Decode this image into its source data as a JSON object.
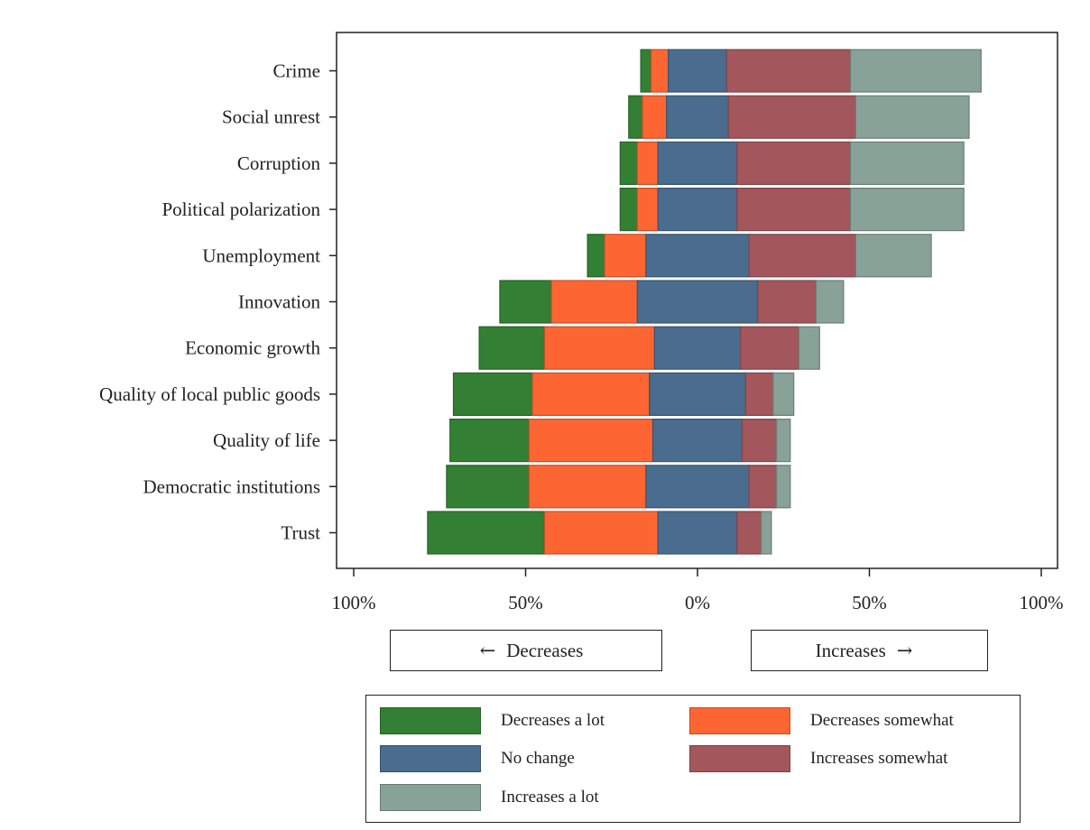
{
  "chart_data": {
    "type": "bar",
    "orientation": "horizontal-diverging",
    "categories": [
      "Crime",
      "Social unrest",
      "Corruption",
      "Political polarization",
      "Unemployment",
      "Innovation",
      "Economic growth",
      "Quality of local public goods",
      "Quality of life",
      "Democratic institutions",
      "Trust"
    ],
    "series": [
      {
        "name": "Decreases a lot",
        "color": "#337f33",
        "values": [
          3,
          4,
          5,
          5,
          5,
          15,
          19,
          23,
          23,
          24,
          34
        ]
      },
      {
        "name": "Decreases somewhat",
        "color": "#fd6633",
        "values": [
          5,
          7,
          6,
          6,
          12,
          25,
          32,
          34,
          36,
          34,
          33
        ]
      },
      {
        "name": "No change",
        "color": "#4a6c8e",
        "values": [
          17,
          18,
          23,
          23,
          30,
          35,
          25,
          28,
          26,
          30,
          23
        ]
      },
      {
        "name": "Increases somewhat",
        "color": "#a3575c",
        "values": [
          36,
          37,
          33,
          33,
          31,
          17,
          17,
          8,
          10,
          8,
          7
        ]
      },
      {
        "name": "Increases a lot",
        "color": "#88a298",
        "values": [
          38,
          33,
          33,
          33,
          22,
          8,
          6,
          6,
          4,
          4,
          3
        ]
      }
    ],
    "xlim": [
      -100,
      100
    ],
    "xticks": [
      -100,
      -50,
      0,
      50,
      100
    ],
    "xtick_labels": [
      "100%",
      "50%",
      "0%",
      "50%",
      "100%"
    ],
    "xlabel": "",
    "ylabel": "",
    "grid": false,
    "legend_position": "bottom"
  },
  "direction_labels": {
    "decreases": {
      "arrow": "←",
      "text": "Decreases"
    },
    "increases": {
      "text": "Increases",
      "arrow": "→"
    }
  },
  "legend": {
    "items": [
      {
        "label": "Decreases a lot",
        "color": "#337f33"
      },
      {
        "label": "Decreases somewhat",
        "color": "#fd6633"
      },
      {
        "label": "No change",
        "color": "#4a6c8e"
      },
      {
        "label": "Increases somewhat",
        "color": "#a3575c"
      },
      {
        "label": "Increases a lot",
        "color": "#88a298"
      }
    ]
  }
}
